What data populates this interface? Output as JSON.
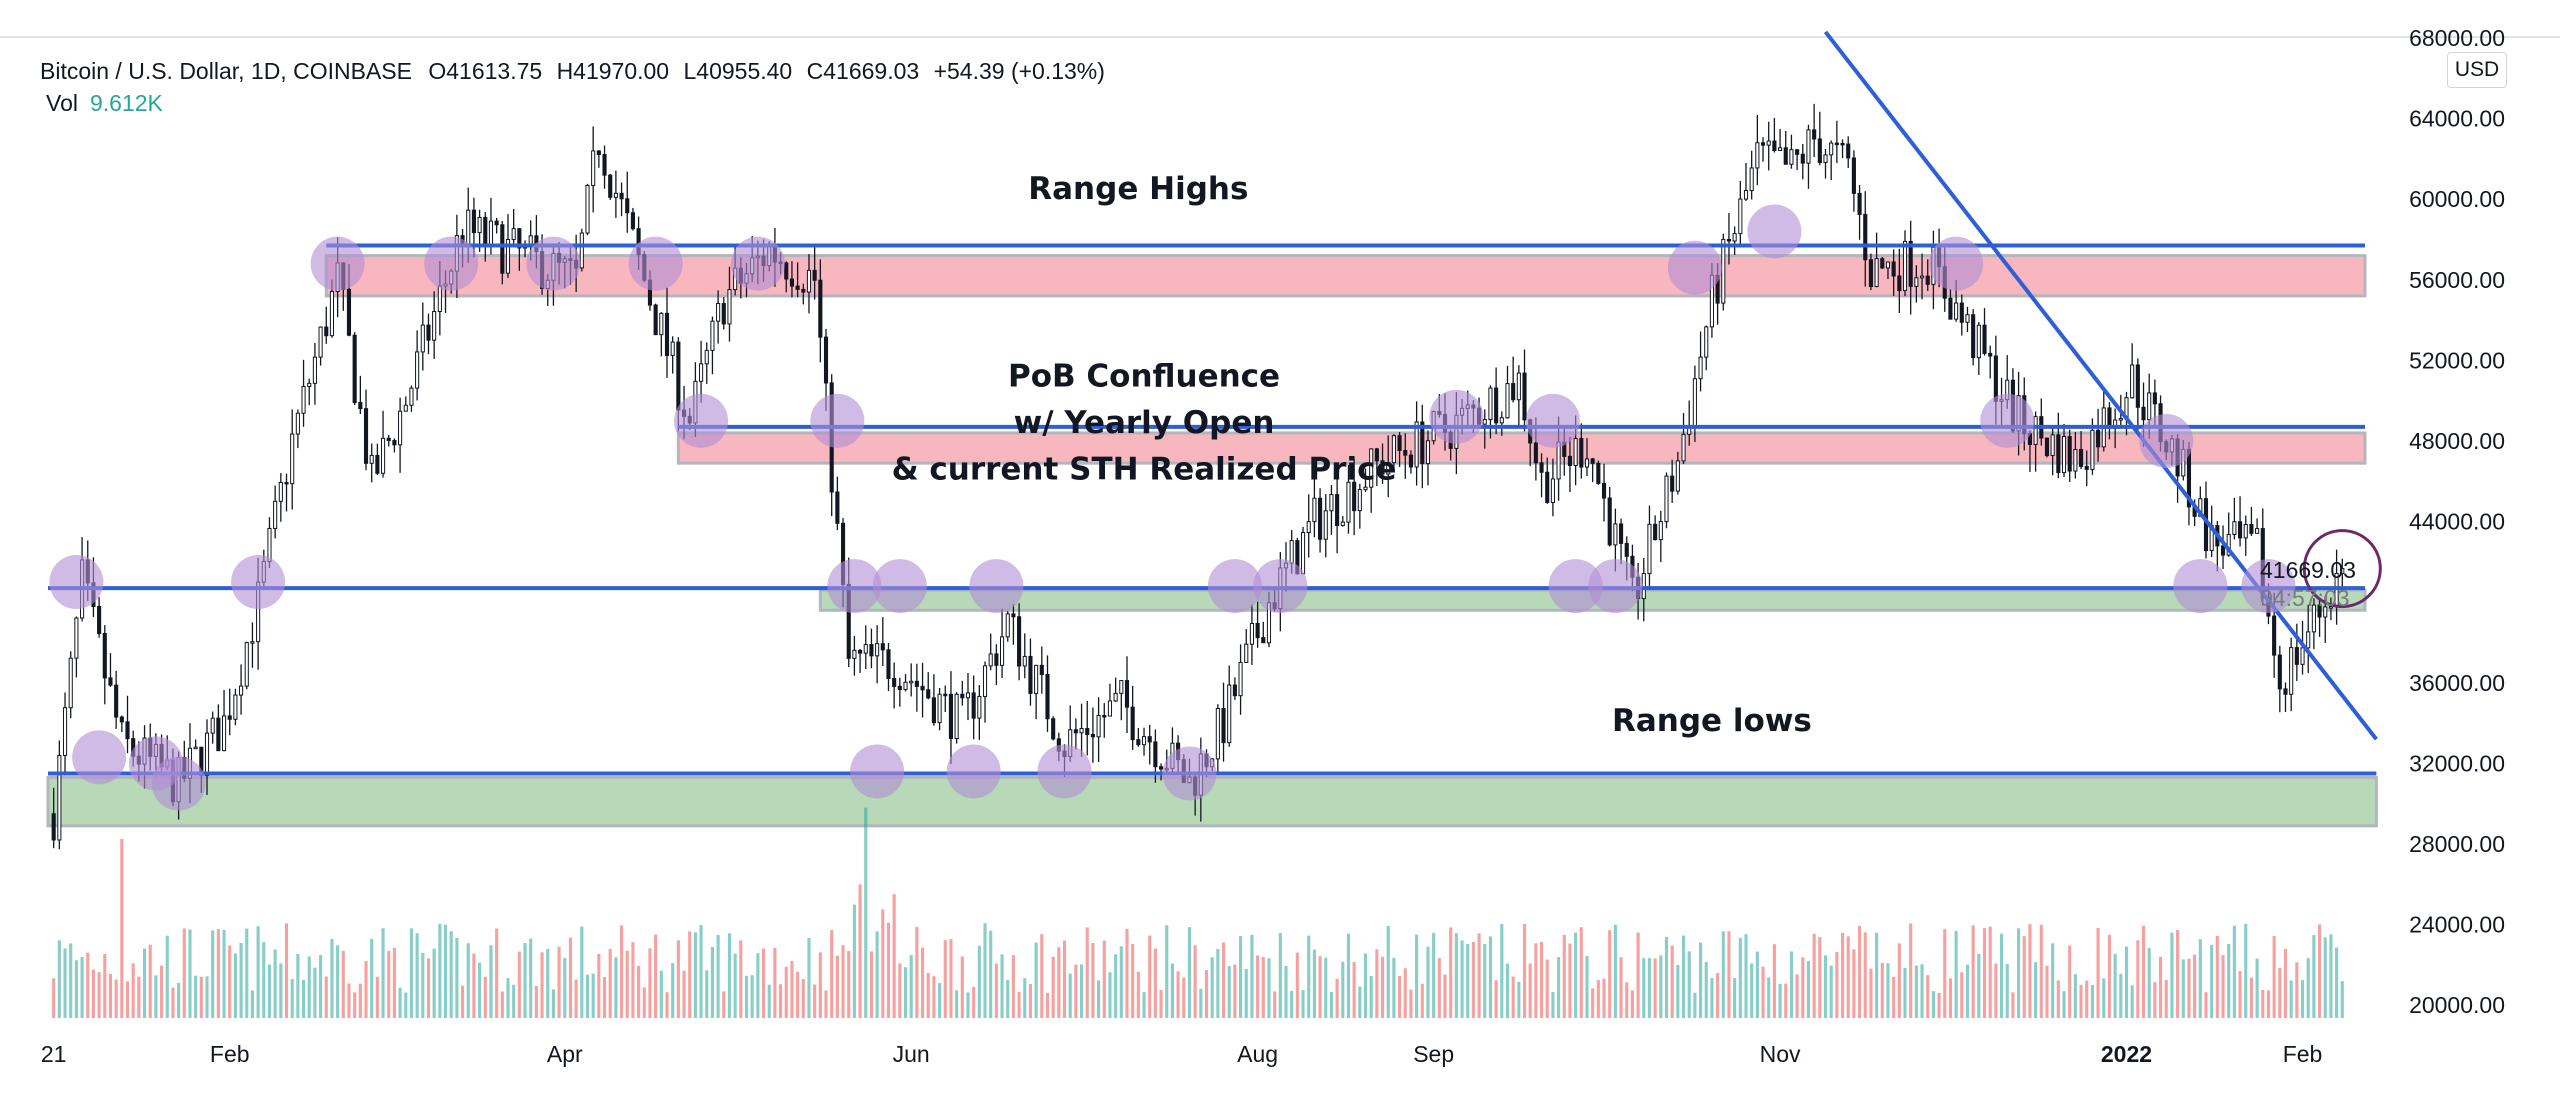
{
  "chart_data": {
    "type": "candlestick",
    "legend": {
      "symbol": "Bitcoin / U.S. Dollar, 1D, COINBASE",
      "open": "O41613.75",
      "high": "H41970.00",
      "low": "L40955.40",
      "close": "C41669.03",
      "change": "+54.39 (+0.13%)",
      "vol_label": "Vol",
      "vol_value": "9.612K"
    },
    "currency": "USD",
    "last_price": "41669.03",
    "countdown": "04:57:03",
    "y_ticks": [
      "68000.00",
      "64000.00",
      "60000.00",
      "56000.00",
      "52000.00",
      "48000.00",
      "44000.00",
      "36000.00",
      "32000.00",
      "28000.00",
      "24000.00",
      "20000.00"
    ],
    "y_tick_values": [
      68000,
      64000,
      60000,
      56000,
      52000,
      48000,
      44000,
      36000,
      32000,
      28000,
      24000,
      20000
    ],
    "ylim": [
      19000,
      68500
    ],
    "x_ticks": [
      {
        "label": "21",
        "day": 0
      },
      {
        "label": "Feb",
        "day": 31
      },
      {
        "label": "Apr",
        "day": 90
      },
      {
        "label": "Jun",
        "day": 151
      },
      {
        "label": "Aug",
        "day": 212
      },
      {
        "label": "Sep",
        "day": 243
      },
      {
        "label": "Nov",
        "day": 304
      },
      {
        "label": "2022",
        "day": 365,
        "bold": true
      },
      {
        "label": "Feb",
        "day": 396
      }
    ],
    "xlim": [
      -1,
      407
    ],
    "annotations": {
      "range_highs": "Range Highs",
      "pob_1": "PoB Confluence",
      "pob_2": "w/ Yearly Open",
      "pob_3": "& current STH Realized Price",
      "range_lows": "Range lows"
    },
    "zones": [
      {
        "kind": "resistance",
        "from_day": 48,
        "to_day": 407,
        "low": 55200,
        "high": 57200,
        "color": "#f8b6bf"
      },
      {
        "kind": "resistance",
        "from_day": 110,
        "to_day": 407,
        "low": 46900,
        "high": 48400,
        "color": "#f8b6bf"
      },
      {
        "kind": "support",
        "from_day": 135,
        "to_day": 407,
        "low": 39600,
        "high": 40600,
        "color": "#b7d9b7"
      },
      {
        "kind": "support",
        "from_day": -1,
        "to_day": 409,
        "low": 28900,
        "high": 31300,
        "color": "#b7d9b7"
      }
    ],
    "levels": [
      {
        "from_day": 48,
        "to_day": 407,
        "price": 57700
      },
      {
        "from_day": 110,
        "to_day": 407,
        "price": 48700
      },
      {
        "from_day": -1,
        "to_day": 407,
        "price": 40700
      },
      {
        "from_day": -1,
        "to_day": 409,
        "price": 31500
      }
    ],
    "trendline": {
      "from": [
        312,
        68300
      ],
      "to": [
        409,
        33200
      ]
    },
    "touches": [
      [
        4,
        41000
      ],
      [
        8,
        32300
      ],
      [
        18,
        32000
      ],
      [
        22,
        31000
      ],
      [
        36,
        41000
      ],
      [
        50,
        56800
      ],
      [
        70,
        56800
      ],
      [
        88,
        56800
      ],
      [
        106,
        56800
      ],
      [
        114,
        49000
      ],
      [
        124,
        56800
      ],
      [
        138,
        49000
      ],
      [
        141,
        40800
      ],
      [
        145,
        31600
      ],
      [
        149,
        40800
      ],
      [
        162,
        31600
      ],
      [
        166,
        40800
      ],
      [
        178,
        31600
      ],
      [
        200,
        31500
      ],
      [
        208,
        40800
      ],
      [
        216,
        40800
      ],
      [
        247,
        49200
      ],
      [
        264,
        49000
      ],
      [
        268,
        40800
      ],
      [
        275,
        40800
      ],
      [
        289,
        56600
      ],
      [
        303,
        58400
      ],
      [
        335,
        56800
      ],
      [
        344,
        49000
      ],
      [
        372,
        48000
      ],
      [
        378,
        40800
      ],
      [
        390,
        40800
      ]
    ],
    "current_marker": [
      403,
      41669
    ],
    "colors": {
      "up": "#26a69a",
      "down": "#ef5350",
      "level": "#2f5fd6",
      "touch": "#b08ed6"
    }
  }
}
